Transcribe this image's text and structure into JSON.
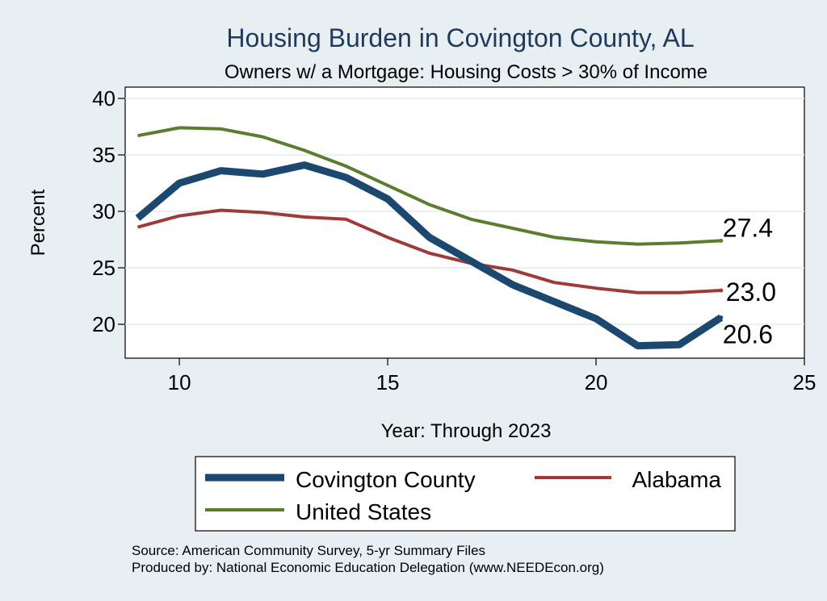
{
  "chart_data": {
    "type": "line",
    "title": "Housing Burden in Covington County, AL",
    "subtitle": "Owners w/ a Mortgage: Housing Costs > 30% of Income",
    "xlabel": "Year: Through 2023",
    "ylabel": "Percent",
    "xlim": [
      8.7,
      25
    ],
    "ylim": [
      17,
      41
    ],
    "xticks": [
      10,
      15,
      20,
      25
    ],
    "yticks": [
      20,
      25,
      30,
      35,
      40
    ],
    "grid": true,
    "legend_position": "bottom",
    "series": [
      {
        "name": "Covington County",
        "color": "#1c4870",
        "x": [
          9,
          10,
          11,
          12,
          13,
          14,
          15,
          16,
          17,
          18,
          19,
          20,
          21,
          22,
          23
        ],
        "values": [
          29.4,
          32.5,
          33.6,
          33.3,
          34.1,
          33.0,
          31.1,
          27.7,
          25.6,
          23.5,
          22.0,
          20.5,
          18.1,
          18.2,
          20.6
        ],
        "end_label": "20.6"
      },
      {
        "name": "Alabama",
        "color": "#a03a3a",
        "x": [
          9,
          10,
          11,
          12,
          13,
          14,
          15,
          16,
          17,
          18,
          19,
          20,
          21,
          22,
          23
        ],
        "values": [
          28.6,
          29.6,
          30.1,
          29.9,
          29.5,
          29.3,
          27.7,
          26.3,
          25.4,
          24.8,
          23.7,
          23.2,
          22.8,
          22.8,
          23.0
        ],
        "end_label": "23.0"
      },
      {
        "name": "United States",
        "color": "#5a7e2e",
        "x": [
          9,
          10,
          11,
          12,
          13,
          14,
          15,
          16,
          17,
          18,
          19,
          20,
          21,
          22,
          23
        ],
        "values": [
          36.7,
          37.4,
          37.3,
          36.6,
          35.4,
          34.0,
          32.3,
          30.6,
          29.3,
          28.5,
          27.7,
          27.3,
          27.1,
          27.2,
          27.4
        ],
        "end_label": "27.4"
      }
    ]
  },
  "source_lines": [
    "Source: American Community Survey, 5-yr Summary Files",
    "Produced by: National Economic Education Delegation (www.NEEDEcon.org)"
  ]
}
